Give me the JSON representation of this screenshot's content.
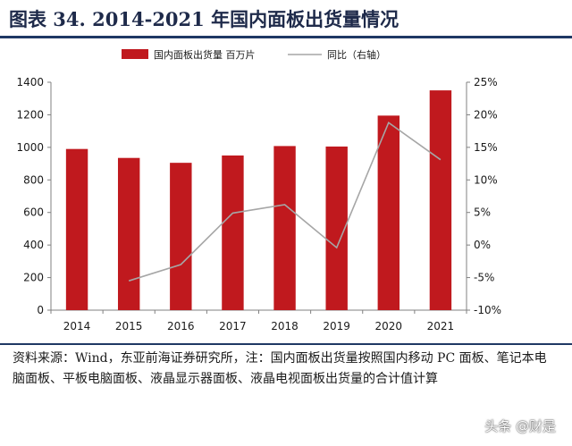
{
  "title": "图表 34. 2014-2021 年国内面板出货量情况",
  "source_note": "资料来源：Wind，东亚前海证券研究所，注：国内面板出货量按照国内移动 PC 面板、笔记本电脑面板、平板电脑面板、液晶显示器面板、液晶电视面板出货量的合计值计算",
  "watermark": "头条 @财是",
  "colors": {
    "bar": "#c0191e",
    "line": "#a6a6a6",
    "rule": "#1f3864"
  },
  "chart_data": {
    "type": "bar",
    "categories": [
      "2014",
      "2015",
      "2016",
      "2017",
      "2018",
      "2019",
      "2020",
      "2021"
    ],
    "series": [
      {
        "name": "国内面板出货量 百万片",
        "type": "bar",
        "axis": "left",
        "values": [
          990,
          935,
          905,
          950,
          1008,
          1005,
          1195,
          1350
        ]
      },
      {
        "name": "同比（右轴）",
        "type": "line",
        "axis": "right",
        "values": [
          null,
          -5.5,
          -3.0,
          4.9,
          6.2,
          -0.4,
          18.8,
          13.1
        ]
      }
    ],
    "ylim": [
      0,
      1400
    ],
    "yticks": [
      "0",
      "200",
      "400",
      "600",
      "800",
      "1000",
      "1200",
      "1400"
    ],
    "y2lim": [
      -10,
      25
    ],
    "y2ticks": [
      "-10%",
      "-5%",
      "0%",
      "5%",
      "10%",
      "15%",
      "20%",
      "25%"
    ],
    "legend_position": "top"
  }
}
